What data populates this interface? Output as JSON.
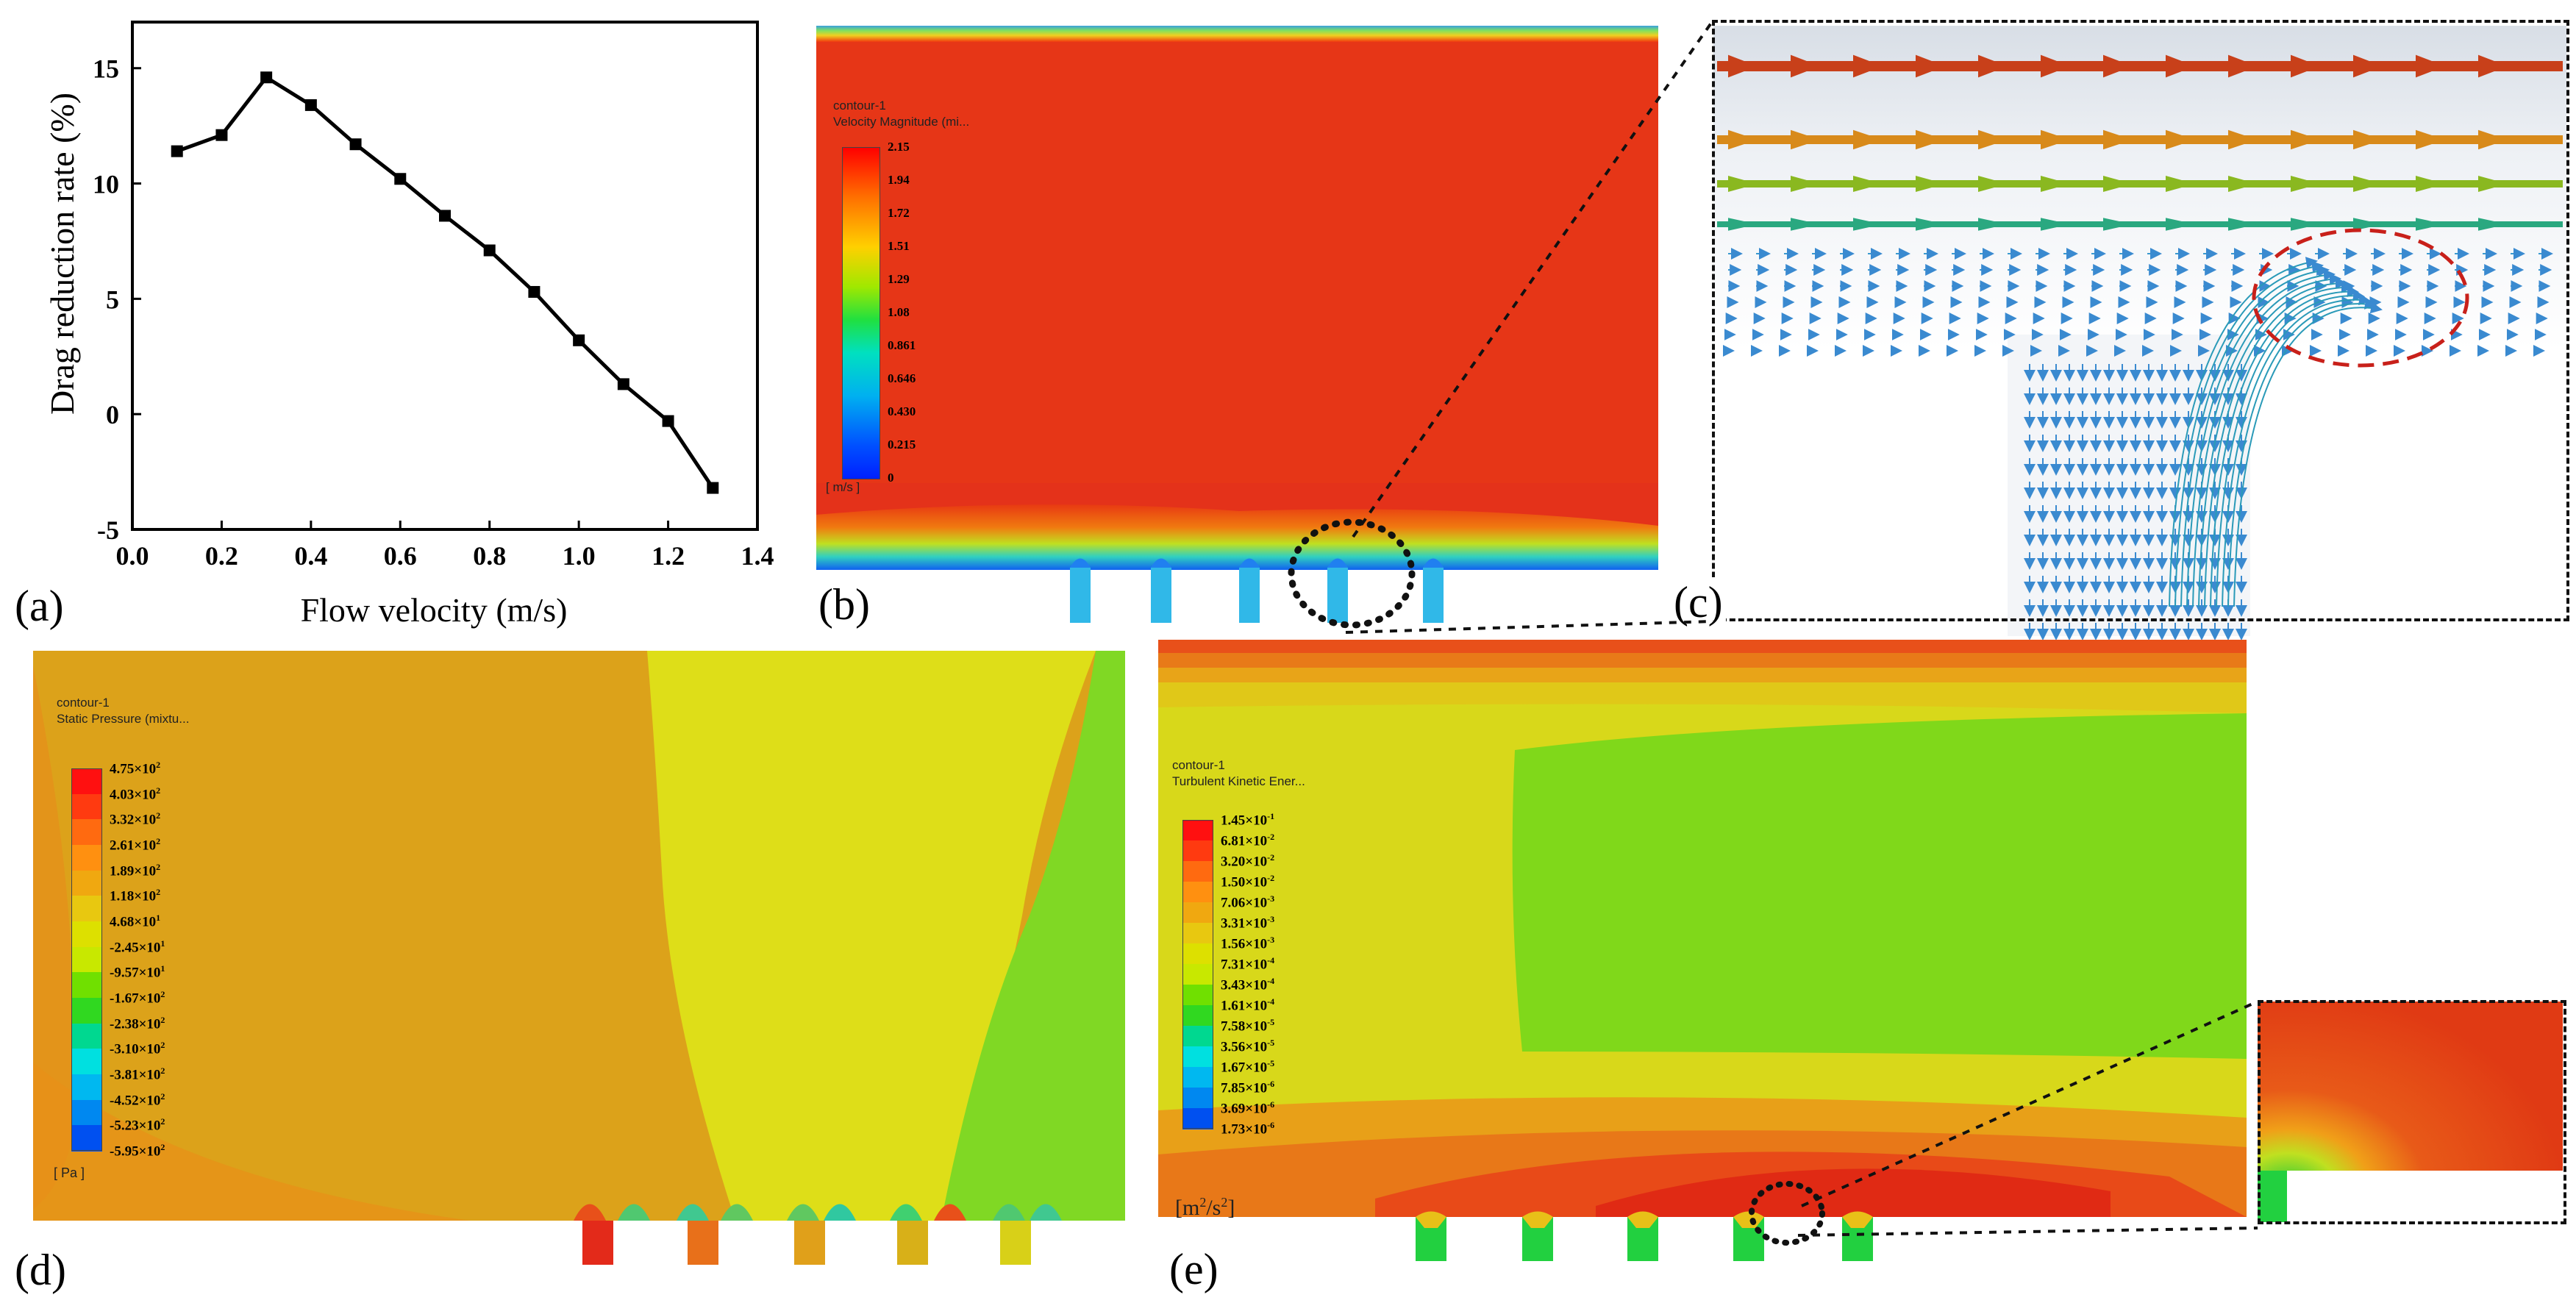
{
  "panel_labels": {
    "a": "(a)",
    "b": "(b)",
    "c": "(c)",
    "d": "(d)",
    "e": "(e)"
  },
  "chart_data": {
    "type": "line",
    "xlabel": "Flow velocity (m/s)",
    "ylabel": "Drag reduction rate (%)",
    "xlim": [
      0.0,
      1.4
    ],
    "ylim": [
      -5,
      17
    ],
    "xticks": [
      "0.0",
      "0.2",
      "0.4",
      "0.6",
      "0.8",
      "1.0",
      "1.2",
      "1.4"
    ],
    "yticks": [
      "-5",
      "0",
      "5",
      "10",
      "15"
    ],
    "x": [
      0.1,
      0.2,
      0.3,
      0.4,
      0.5,
      0.6,
      0.7,
      0.8,
      0.9,
      1.0,
      1.1,
      1.2,
      1.3
    ],
    "y": [
      11.4,
      12.1,
      14.6,
      13.4,
      11.7,
      10.2,
      8.6,
      7.1,
      5.3,
      3.2,
      1.3,
      -0.3,
      -3.2
    ],
    "marker": "square",
    "grid": false
  },
  "contour_b": {
    "title_line1": "contour-1",
    "title_line2": "Velocity Magnitude (mi...",
    "unit": "[ m/s ]",
    "levels": [
      "2.15",
      "1.94",
      "1.72",
      "1.51",
      "1.29",
      "1.08",
      "0.861",
      "0.646",
      "0.430",
      "0.215",
      "0"
    ]
  },
  "contour_d": {
    "title_line1": "contour-1",
    "title_line2": "Static Pressure (mixtu...",
    "unit": "[ Pa ]",
    "levels": [
      {
        "m": "4.75",
        "e": "2"
      },
      {
        "m": "4.03",
        "e": "2"
      },
      {
        "m": "3.32",
        "e": "2"
      },
      {
        "m": "2.61",
        "e": "2"
      },
      {
        "m": "1.89",
        "e": "2"
      },
      {
        "m": "1.18",
        "e": "2"
      },
      {
        "m": "4.68",
        "e": "1"
      },
      {
        "m": "-2.45",
        "e": "1"
      },
      {
        "m": "-9.57",
        "e": "1"
      },
      {
        "m": "-1.67",
        "e": "2"
      },
      {
        "m": "-2.38",
        "e": "2"
      },
      {
        "m": "-3.10",
        "e": "2"
      },
      {
        "m": "-3.81",
        "e": "2"
      },
      {
        "m": "-4.52",
        "e": "2"
      },
      {
        "m": "-5.23",
        "e": "2"
      },
      {
        "m": "-5.95",
        "e": "2"
      }
    ]
  },
  "contour_e": {
    "title_line1": "contour-1",
    "title_line2": "Turbulent Kinetic Ener...",
    "unit_base": "[m",
    "unit_sup1": "2",
    "unit_mid": "/s",
    "unit_sup2": "2",
    "unit_end": "]",
    "levels": [
      {
        "m": "1.45",
        "e": "-1"
      },
      {
        "m": "6.81",
        "e": "-2"
      },
      {
        "m": "3.20",
        "e": "-2"
      },
      {
        "m": "1.50",
        "e": "-2"
      },
      {
        "m": "7.06",
        "e": "-3"
      },
      {
        "m": "3.31",
        "e": "-3"
      },
      {
        "m": "1.56",
        "e": "-3"
      },
      {
        "m": "7.31",
        "e": "-4"
      },
      {
        "m": "3.43",
        "e": "-4"
      },
      {
        "m": "1.61",
        "e": "-4"
      },
      {
        "m": "7.58",
        "e": "-5"
      },
      {
        "m": "3.56",
        "e": "-5"
      },
      {
        "m": "1.67",
        "e": "-5"
      },
      {
        "m": "7.85",
        "e": "-6"
      },
      {
        "m": "3.69",
        "e": "-6"
      },
      {
        "m": "1.73",
        "e": "-6"
      }
    ]
  },
  "colors": {
    "legend_b": [
      "#ff0000",
      "#ff5a00",
      "#ffa800",
      "#f0e400",
      "#9ce800",
      "#25e000",
      "#00e0a0",
      "#00d0e8",
      "#0098f0",
      "#0040ff"
    ],
    "legend_16": [
      "#ff1010",
      "#ff3a10",
      "#ff6a10",
      "#ff9010",
      "#f0a810",
      "#e8c810",
      "#dde000",
      "#c8e800",
      "#70e000",
      "#30d820",
      "#00d890",
      "#00e0e0",
      "#00b8f0",
      "#0088f0",
      "#0050f0",
      "#0018e8"
    ]
  }
}
